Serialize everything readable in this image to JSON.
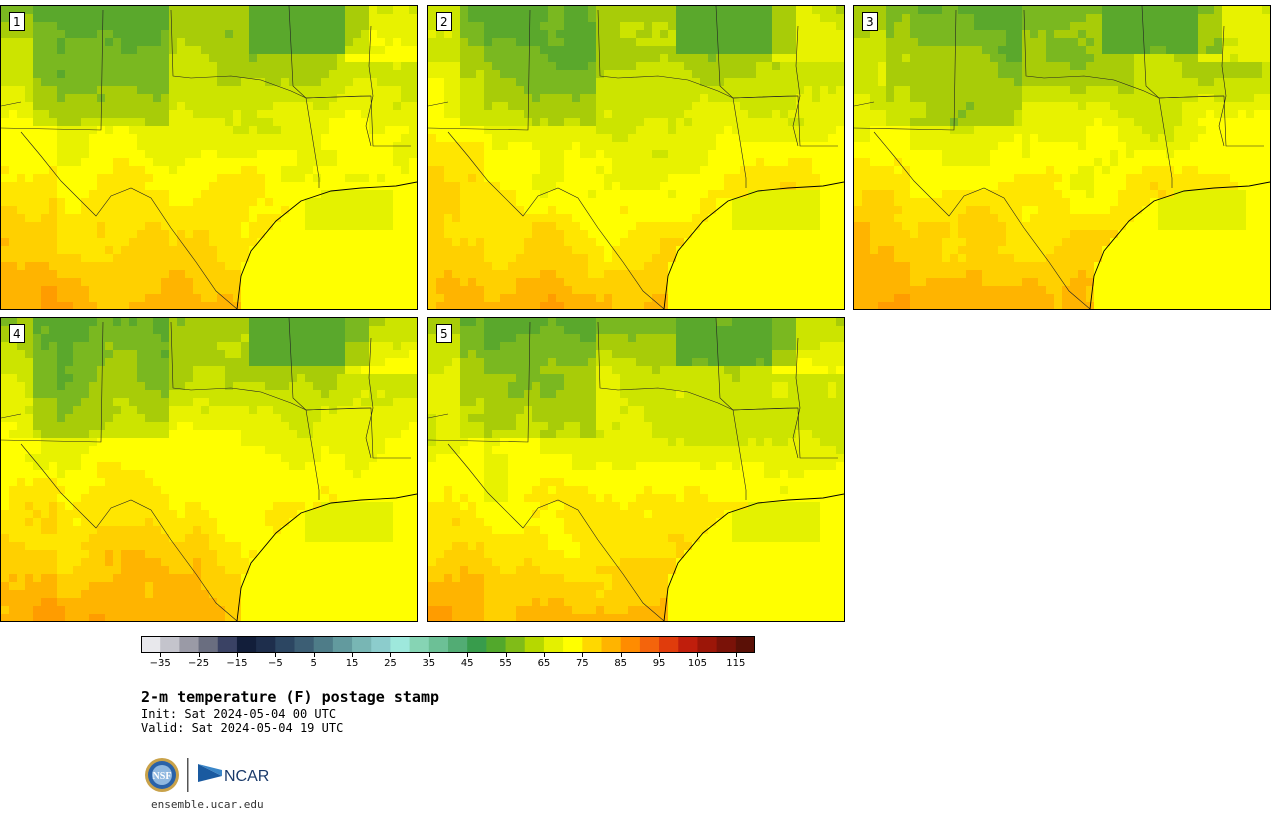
{
  "chart_data": {
    "type": "heatmap",
    "title": "2-m temperature (F) postage stamp",
    "init": "Init: Sat 2024-05-04 00 UTC",
    "valid": "Valid: Sat 2024-05-04 19 UTC",
    "members": [
      {
        "label": "1"
      },
      {
        "label": "2"
      },
      {
        "label": "3"
      },
      {
        "label": "4"
      },
      {
        "label": "5"
      }
    ],
    "colorbar": {
      "ticks": [
        "−35",
        "−25",
        "−15",
        "−5",
        "5",
        "15",
        "25",
        "35",
        "45",
        "55",
        "65",
        "75",
        "85",
        "95",
        "105",
        "115"
      ],
      "bounds": [
        -40,
        120
      ],
      "colors": [
        "#e8e8ec",
        "#c4c4cc",
        "#9a9aa6",
        "#6a6e80",
        "#3a4264",
        "#121e3a",
        "#1e2e4c",
        "#2c4662",
        "#3c5e74",
        "#4e7c88",
        "#629a9e",
        "#78b6b4",
        "#8ccccc",
        "#9ee8dc",
        "#86d4b4",
        "#6cc096",
        "#52ac74",
        "#389c4c",
        "#52a82c",
        "#80bc18",
        "#b6d800",
        "#e4f000",
        "#ffff00",
        "#ffd800",
        "#ffb400",
        "#ff8c00",
        "#f4640c",
        "#e03c0c",
        "#c01e0c",
        "#9c1608",
        "#7a1208",
        "#5a1006"
      ]
    }
  },
  "footer": {
    "nsf_logo": "NSF",
    "ncar_logo": "NCAR",
    "website": "ensemble.ucar.edu"
  }
}
